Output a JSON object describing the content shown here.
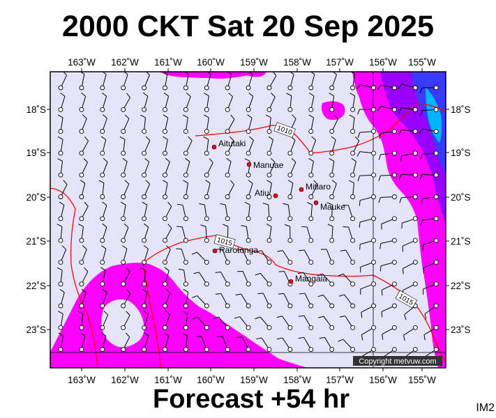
{
  "title": "2000 CKT Sat 20 Sep 2025",
  "footer": "Forecast +54 hr",
  "corner_label": "IM2",
  "copyright": "Copyright metvuw.com",
  "colors": {
    "background": "#e4e4f8",
    "magenta": "#ff00ff",
    "purple": "#9a00ff",
    "blue": "#3a3aff",
    "cyan": "#00b4ff",
    "isobar": "#ff0000",
    "wind": "#000000",
    "town": "#ff0000"
  },
  "axes": {
    "lon_labels": [
      "163˚W",
      "162˚W",
      "161˚W",
      "160˚W",
      "159˚W",
      "158˚W",
      "157˚W",
      "156˚W",
      "155˚W"
    ],
    "lat_labels": [
      "18˚S",
      "19˚S",
      "20˚S",
      "21˚S",
      "22˚S",
      "23˚S"
    ]
  },
  "isobars": [
    "1010",
    "1015",
    "1015"
  ],
  "places": [
    {
      "name": "Aitutaki"
    },
    {
      "name": "Manuae"
    },
    {
      "name": "Atiu"
    },
    {
      "name": "Mitiaro"
    },
    {
      "name": "Mauke"
    },
    {
      "name": "Rarotonga"
    },
    {
      "name": "Mangaia"
    }
  ]
}
